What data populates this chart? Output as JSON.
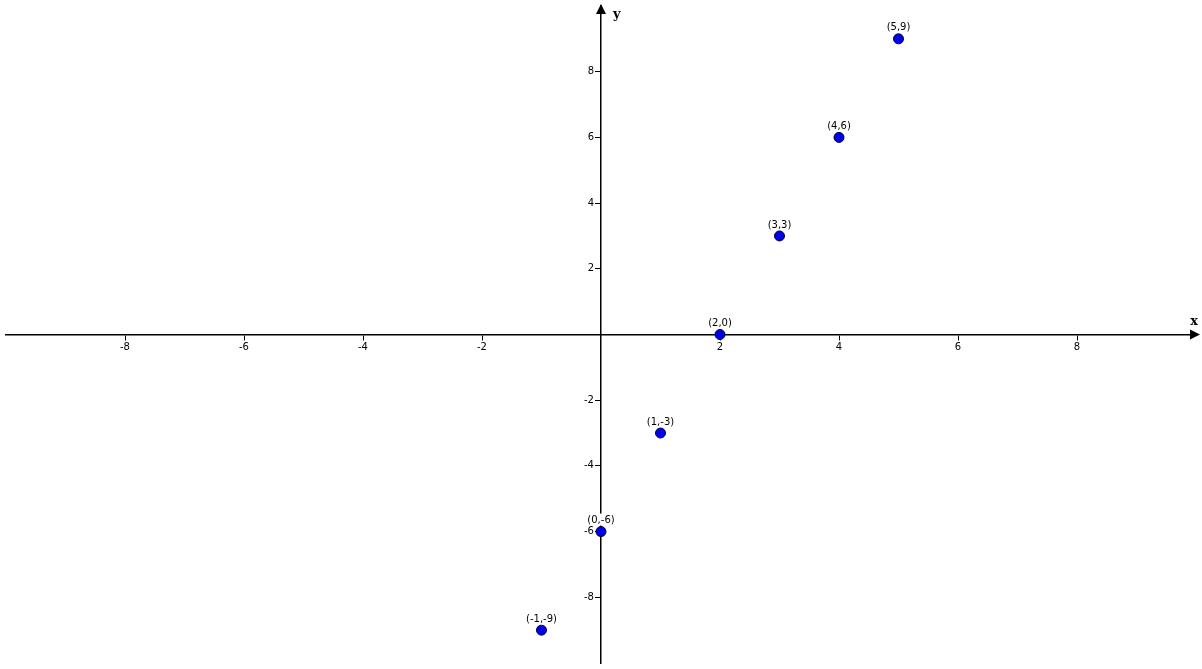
{
  "chart_data": {
    "type": "scatter",
    "xlabel": "x",
    "ylabel": "y",
    "x": [
      -1,
      0,
      1,
      2,
      3,
      4,
      5
    ],
    "series": [
      {
        "color": "#0000ee",
        "values": [
          -9,
          -6,
          -3,
          0,
          3,
          6,
          9
        ]
      }
    ],
    "annotations": [
      {
        "text": "(-1,-9)",
        "x": -1,
        "y": -9
      },
      {
        "text": "(0,-6)",
        "x": 0,
        "y": -6
      },
      {
        "text": "(1,-3)",
        "x": 1,
        "y": -3
      },
      {
        "text": "(2,0)",
        "x": 2,
        "y": 0
      },
      {
        "text": "(3,3)",
        "x": 3,
        "y": 3
      },
      {
        "text": "(4,6)",
        "x": 4,
        "y": 6
      },
      {
        "text": "(5,9)",
        "x": 5,
        "y": 9
      }
    ],
    "xlim": [
      -10,
      10
    ],
    "ylim": [
      -10,
      10
    ],
    "xticks": [
      -8,
      -6,
      -4,
      -2,
      2,
      4,
      6,
      8
    ],
    "yticks": [
      -8,
      -6,
      -4,
      -2,
      2,
      4,
      6,
      8
    ],
    "grid": false,
    "legend": false,
    "marker": "circle"
  }
}
